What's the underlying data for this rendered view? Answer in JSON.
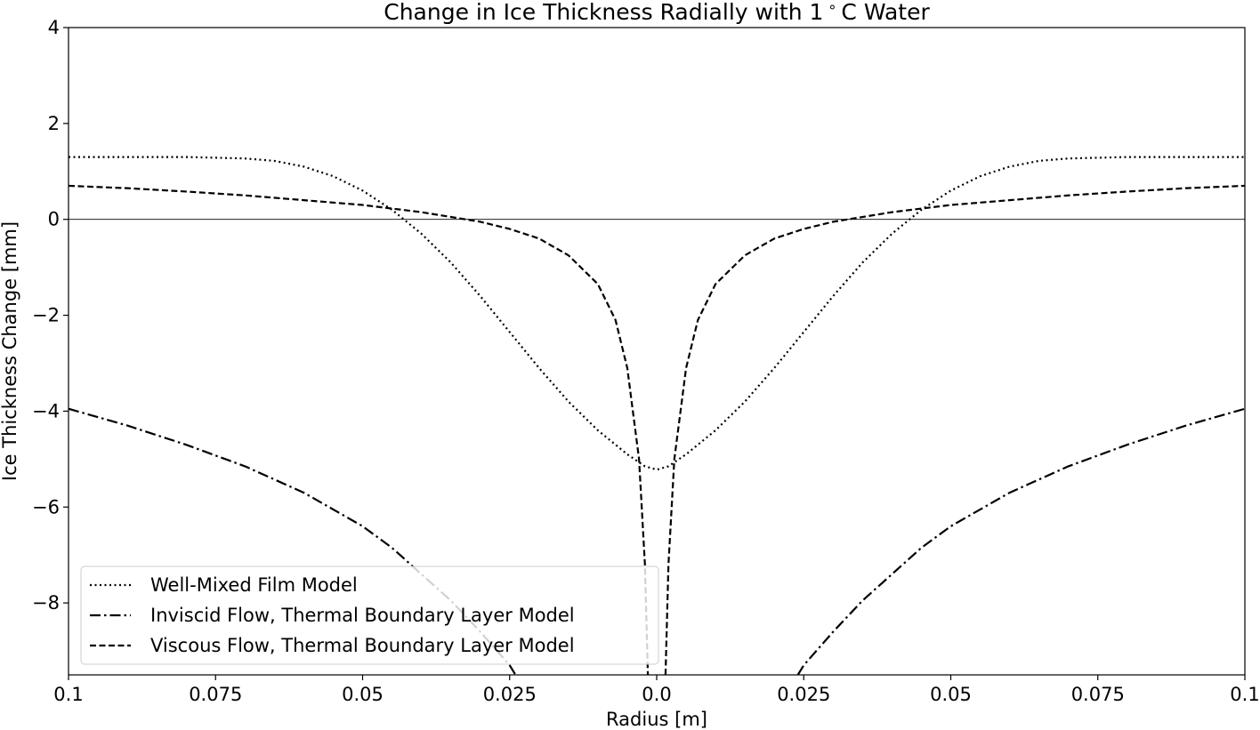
{
  "chart_data": {
    "type": "line",
    "title": "Change in Ice Thickness Radially with 1$^\\circ$C Water",
    "title_parts": {
      "prefix": "Change in Ice Thickness Radially with 1",
      "degree": "∘",
      "suffix": "C Water"
    },
    "xlabel": "Radius [m]",
    "ylabel": "Ice Thickness Change [mm]",
    "xlim": [
      -0.1,
      0.1
    ],
    "ylim": [
      -9.5,
      4
    ],
    "x_ticks": [
      -0.1,
      -0.075,
      -0.05,
      -0.025,
      0.0,
      0.025,
      0.05,
      0.075,
      0.1
    ],
    "x_tick_labels": [
      "0.1",
      "0.075",
      "0.05",
      "0.025",
      "0.0",
      "0.025",
      "0.05",
      "0.075",
      "0.1"
    ],
    "y_ticks": [
      4,
      2,
      0,
      -2,
      -4,
      -6,
      -8
    ],
    "y_tick_labels": [
      "4",
      "2",
      "0",
      "−2",
      "−4",
      "−6",
      "−8"
    ],
    "zero_line": true,
    "grid": false,
    "legend_position": "lower-left",
    "series": [
      {
        "name": "Well-Mixed Film Model",
        "line_style": "dotted",
        "color": "#000000",
        "x": [
          -0.1,
          -0.09,
          -0.08,
          -0.07,
          -0.065,
          -0.06,
          -0.055,
          -0.05,
          -0.045,
          -0.04,
          -0.035,
          -0.03,
          -0.025,
          -0.02,
          -0.015,
          -0.01,
          -0.005,
          -0.002,
          0.0,
          0.002,
          0.005,
          0.01,
          0.015,
          0.02,
          0.025,
          0.03,
          0.035,
          0.04,
          0.045,
          0.05,
          0.055,
          0.06,
          0.065,
          0.07,
          0.08,
          0.09,
          0.1
        ],
        "y": [
          1.3,
          1.3,
          1.3,
          1.27,
          1.22,
          1.1,
          0.9,
          0.6,
          0.2,
          -0.3,
          -0.9,
          -1.6,
          -2.35,
          -3.1,
          -3.8,
          -4.4,
          -4.9,
          -5.15,
          -5.22,
          -5.15,
          -4.9,
          -4.4,
          -3.8,
          -3.1,
          -2.35,
          -1.6,
          -0.9,
          -0.3,
          0.2,
          0.6,
          0.9,
          1.1,
          1.22,
          1.27,
          1.3,
          1.3,
          1.3
        ]
      },
      {
        "name": "Inviscid Flow, Thermal Boundary Layer Model",
        "line_style": "dash-dot",
        "color": "#000000",
        "x": [
          -0.1,
          -0.09,
          -0.08,
          -0.07,
          -0.06,
          -0.05,
          -0.045,
          -0.04,
          -0.035,
          -0.03,
          -0.025,
          -0.024,
          null,
          0.024,
          0.025,
          0.03,
          0.035,
          0.04,
          0.045,
          0.05,
          0.06,
          0.07,
          0.08,
          0.09,
          0.1
        ],
        "y": [
          -3.95,
          -4.3,
          -4.7,
          -5.15,
          -5.7,
          -6.4,
          -6.85,
          -7.4,
          -7.95,
          -8.6,
          -9.3,
          -9.5,
          null,
          -9.5,
          -9.3,
          -8.6,
          -7.95,
          -7.4,
          -6.85,
          -6.4,
          -5.7,
          -5.15,
          -4.7,
          -4.3,
          -3.95
        ]
      },
      {
        "name": "Viscous Flow, Thermal Boundary Layer Model",
        "line_style": "dashed",
        "color": "#000000",
        "x": [
          -0.1,
          -0.09,
          -0.08,
          -0.07,
          -0.06,
          -0.05,
          -0.04,
          -0.03,
          -0.025,
          -0.02,
          -0.015,
          -0.01,
          -0.007,
          -0.005,
          -0.003,
          -0.002,
          -0.0015,
          null,
          0.0015,
          0.002,
          0.003,
          0.005,
          0.007,
          0.01,
          0.015,
          0.02,
          0.025,
          0.03,
          0.04,
          0.05,
          0.06,
          0.07,
          0.08,
          0.09,
          0.1
        ],
        "y": [
          0.7,
          0.65,
          0.58,
          0.5,
          0.4,
          0.3,
          0.15,
          -0.05,
          -0.2,
          -0.4,
          -0.75,
          -1.35,
          -2.1,
          -3.1,
          -5.0,
          -7.2,
          -9.5,
          null,
          -9.5,
          -7.2,
          -5.0,
          -3.1,
          -2.1,
          -1.35,
          -0.75,
          -0.4,
          -0.2,
          -0.05,
          0.15,
          0.3,
          0.4,
          0.5,
          0.58,
          0.65,
          0.7
        ]
      }
    ]
  }
}
